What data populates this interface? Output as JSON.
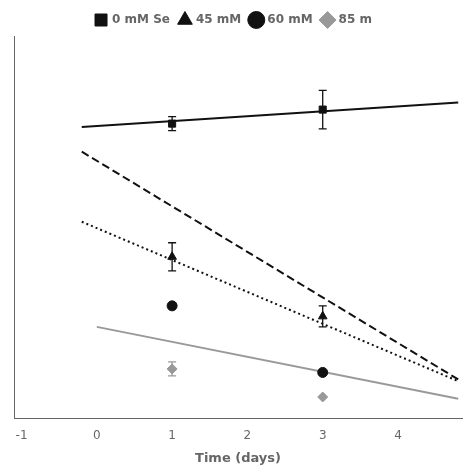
{
  "chart_data": {
    "type": "line",
    "xlabel": "Time (days)",
    "xlim": [
      -1.1,
      4.85
    ],
    "xticks": [
      -1,
      0,
      1,
      2,
      3,
      4
    ],
    "ylim": [
      -0.04,
      1.05
    ],
    "tick_labels": "x",
    "grid": false,
    "legend": "top",
    "series": [
      {
        "name": "0 mM Se",
        "color": "#111111",
        "marker": "square",
        "line_style": "solid",
        "x": [
          1,
          3
        ],
        "values": [
          0.8,
          0.84
        ],
        "yerr": [
          0.02,
          0.055
        ],
        "line_x": [
          -0.2,
          4.8
        ],
        "line_values": [
          0.79,
          0.86
        ]
      },
      {
        "name": "45 mM",
        "color": "#111111",
        "marker": "triangle",
        "line_style": "dashed",
        "x": [
          1,
          3
        ],
        "values": [
          0.42,
          0.25
        ],
        "yerr": [
          0.04,
          0.03
        ],
        "line_x": [
          -0.2,
          4.8
        ],
        "line_values": [
          0.72,
          0.07
        ]
      },
      {
        "name": "60 mM",
        "color": "#111111",
        "marker": "circle",
        "line_style": "dotted",
        "x": [
          1,
          3
        ],
        "values": [
          0.28,
          0.09
        ],
        "yerr": [
          0.0,
          0.0
        ],
        "line_x": [
          -0.2,
          4.8
        ],
        "line_values": [
          0.52,
          0.065
        ]
      },
      {
        "name": "85 m",
        "color": "#999999",
        "marker": "diamond",
        "line_style": "solid",
        "x": [
          1,
          3
        ],
        "values": [
          0.1,
          0.02
        ],
        "yerr": [
          0.02,
          0.0
        ],
        "line_x": [
          0.0,
          4.8
        ],
        "line_values": [
          0.22,
          0.015
        ]
      }
    ]
  }
}
